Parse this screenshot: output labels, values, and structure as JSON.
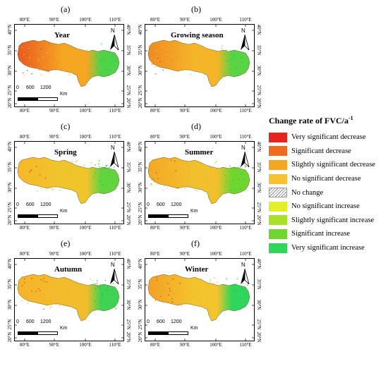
{
  "panels": [
    {
      "letter": "(a)",
      "title": "Year",
      "scale_values": [
        "0",
        "600",
        "1200"
      ]
    },
    {
      "letter": "(b)",
      "title": "Growing season",
      "scale_values": []
    },
    {
      "letter": "(c)",
      "title": "Spring",
      "scale_values": [
        "0",
        "600",
        "1200"
      ]
    },
    {
      "letter": "(d)",
      "title": "Summer",
      "scale_values": [
        "0",
        "600",
        "1200"
      ]
    },
    {
      "letter": "(e)",
      "title": "Autumn",
      "scale_values": [
        "0",
        "600",
        "1200"
      ]
    },
    {
      "letter": "(f)",
      "title": "Winter",
      "scale_values": [
        "0",
        "600",
        "1200"
      ]
    }
  ],
  "axes": {
    "lon_ticks": [
      "80°E",
      "90°E",
      "100°E",
      "110°E"
    ],
    "lat_ticks": [
      "40°N",
      "35°N",
      "30°N",
      "25°N",
      "20°N"
    ]
  },
  "north_label": "N",
  "scale_unit": "Km",
  "legend": {
    "title": "Change rate of FVC/a",
    "title_sup": "-1",
    "items": [
      {
        "label": "Very significant decrease",
        "color": "#e8231d"
      },
      {
        "label": "Significant decrease",
        "color": "#f06a1f"
      },
      {
        "label": "Slightly significant decrease",
        "color": "#f5a623"
      },
      {
        "label": "No significant decrease",
        "color": "#f7c22e"
      },
      {
        "label": "No change",
        "color": "hatch"
      },
      {
        "label": "No significant increase",
        "color": "#e4ef2c"
      },
      {
        "label": "Slightly significant increase",
        "color": "#a9e02c"
      },
      {
        "label": "Significant increase",
        "color": "#6fd52f"
      },
      {
        "label": "Very significant increase",
        "color": "#2fd65b"
      }
    ]
  }
}
